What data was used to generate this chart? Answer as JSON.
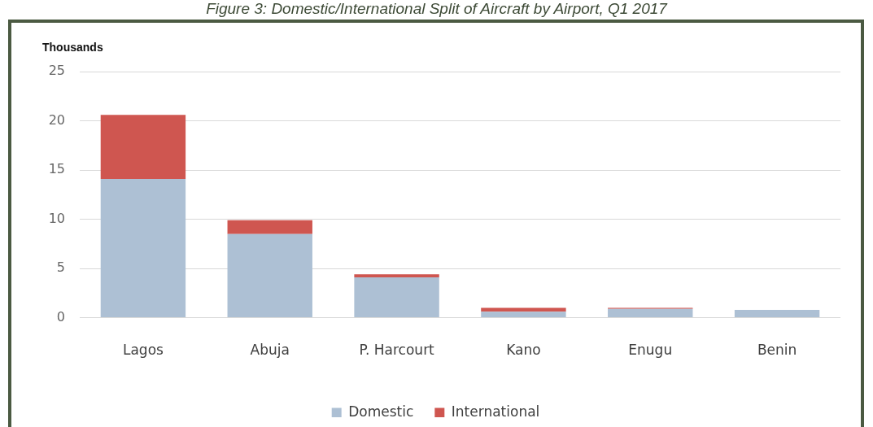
{
  "chart_data": {
    "type": "bar",
    "title": "Figure 3: Domestic/International Split of Aircraft by Airport, Q1 2017",
    "ylabel": "Thousands",
    "categories": [
      "Lagos",
      "Abuja",
      "P. Harcourt",
      "Kano",
      "Enugu",
      "Benin"
    ],
    "series": [
      {
        "name": "Domestic",
        "color": "#adc0d4",
        "values": [
          14.1,
          8.5,
          4.1,
          0.6,
          0.9,
          0.8
        ]
      },
      {
        "name": "International",
        "color": "#cf5650",
        "values": [
          6.5,
          1.4,
          0.3,
          0.4,
          0.1,
          null
        ]
      }
    ],
    "stacked": true,
    "ylim": [
      0,
      25
    ],
    "yticks": [
      0,
      5,
      10,
      15,
      20,
      25
    ],
    "grid": "y",
    "legend": "bottom"
  }
}
